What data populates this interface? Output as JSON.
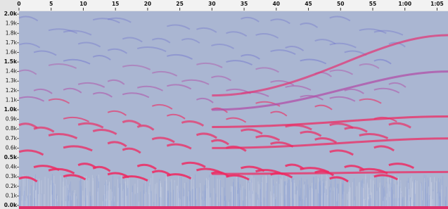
{
  "chart_data": {
    "type": "spectrogram",
    "xlim": [
      0,
      66.7
    ],
    "xticks": [
      0,
      5,
      10,
      15,
      20,
      25,
      30,
      35,
      40,
      45,
      50,
      55,
      {
        "value": 60,
        "label": "1:00"
      },
      {
        "value": 65,
        "label": "1:05"
      }
    ],
    "ylim": [
      -37,
      2030
    ],
    "yticks": [
      {
        "value": 0,
        "label": "0.0k"
      },
      {
        "value": 100,
        "label": "0.1k"
      },
      {
        "value": 200,
        "label": "0.2k"
      },
      {
        "value": 300,
        "label": "0.3k"
      },
      {
        "value": 400,
        "label": "0.4k"
      },
      {
        "value": 500,
        "label": "0.5k"
      },
      {
        "value": 600,
        "label": "0.6k"
      },
      {
        "value": 700,
        "label": "0.7k"
      },
      {
        "value": 800,
        "label": "0.8k"
      },
      {
        "value": 900,
        "label": "0.9k"
      },
      {
        "value": 1000,
        "label": "1.0k"
      },
      {
        "value": 1100,
        "label": "1.1k"
      },
      {
        "value": 1200,
        "label": "1.2k"
      },
      {
        "value": 1300,
        "label": "1.3k"
      },
      {
        "value": 1400,
        "label": "1.4k"
      },
      {
        "value": 1500,
        "label": "1.5k"
      },
      {
        "value": 1600,
        "label": "1.6k"
      },
      {
        "value": 1700,
        "label": "1.7k"
      },
      {
        "value": 1800,
        "label": "1.8k"
      },
      {
        "value": 1900,
        "label": "1.9k"
      },
      {
        "value": 2000,
        "label": "2.0k"
      }
    ]
  }
}
